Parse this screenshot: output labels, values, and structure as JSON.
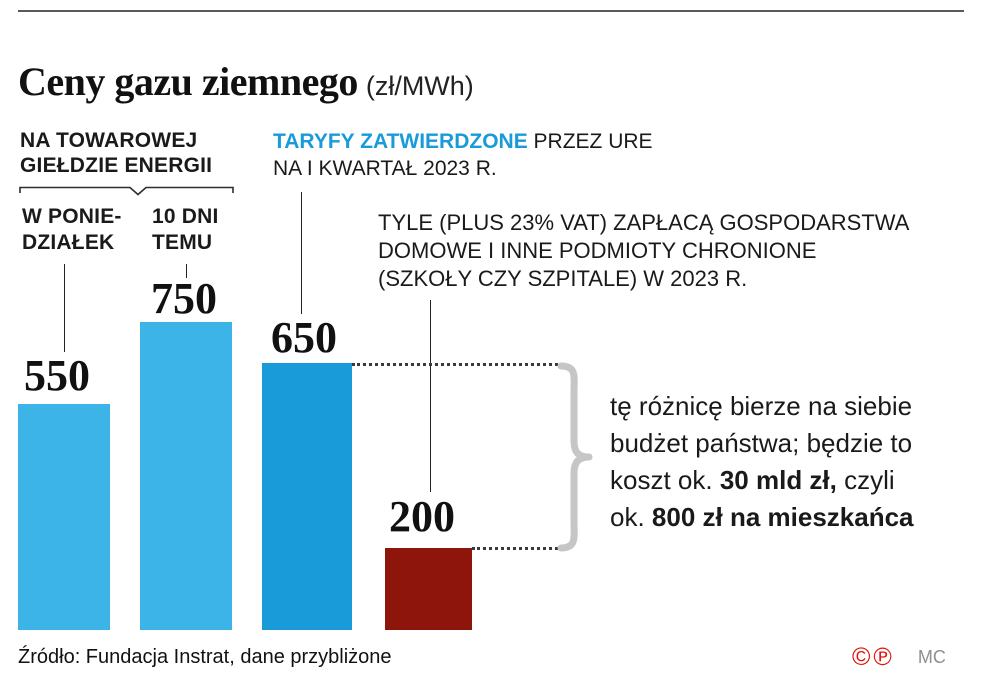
{
  "header": {
    "title": "Ceny gazu ziemnego",
    "unit": "(zł/MWh)"
  },
  "chart_data": {
    "type": "bar",
    "title": "Ceny gazu ziemnego",
    "unit": "zł/MWh",
    "categories": [
      "W poniedziałek (na Towarowej Giełdzie Energii)",
      "10 dni temu (na Towarowej Giełdzie Energii)",
      "Taryfy zatwierdzone przez URE na I kwartał 2023 r.",
      "Tyle (plus 23% VAT) zapłacą gospodarstwa domowe i inne podmioty chronione w 2023 r."
    ],
    "values": [
      550,
      750,
      650,
      200
    ],
    "bar_colors": [
      "#3cb4e7",
      "#3cb4e7",
      "#189bd8",
      "#8d150b"
    ],
    "ylim": [
      0,
      750
    ],
    "grid": false,
    "legend": false
  },
  "annotations": {
    "exchange_line1": "NA TOWAROWEJ",
    "exchange_line2": "GIEŁDZIE ENERGII",
    "monday_line1": "W PONIE-",
    "monday_line2": "DZIAŁEK",
    "tendays_line1": "10 DNI",
    "tendays_line2": "TEMU",
    "tariffs_highlight": "TARYFY ZATWIERDZONE",
    "tariffs_suffix": " PRZEZ URE",
    "tariffs_line2": "NA I KWARTAŁ 2023 R.",
    "households_line1": "TYLE (PLUS 23% VAT) ZAPŁACĄ GOSPODARSTWA",
    "households_line2": "DOMOWE I INNE PODMIOTY CHRONIONE",
    "households_line3": "(SZKOŁY CZY SZPITALE)  W 2023 R.",
    "difference": {
      "line1": "tę różnicę bierze na siebie",
      "line2": "budżet państwa; będzie to",
      "line3_pre": "koszt ok. ",
      "line3_bold": "30 mld zł,",
      "line3_post": " czyli",
      "line4_pre": "ok. ",
      "line4_bold": "800 zł na mieszkańca"
    }
  },
  "footer": {
    "source": "Źródło: Fundacja Instrat, dane przybliżone",
    "copyright_c": "©",
    "copyright_p": "℗",
    "credit": "MC"
  },
  "colors": {
    "accent_blue": "#189bd8",
    "light_blue": "#3cb4e7",
    "dark_red": "#8d150b",
    "brace_gray": "#c6c6c6"
  }
}
